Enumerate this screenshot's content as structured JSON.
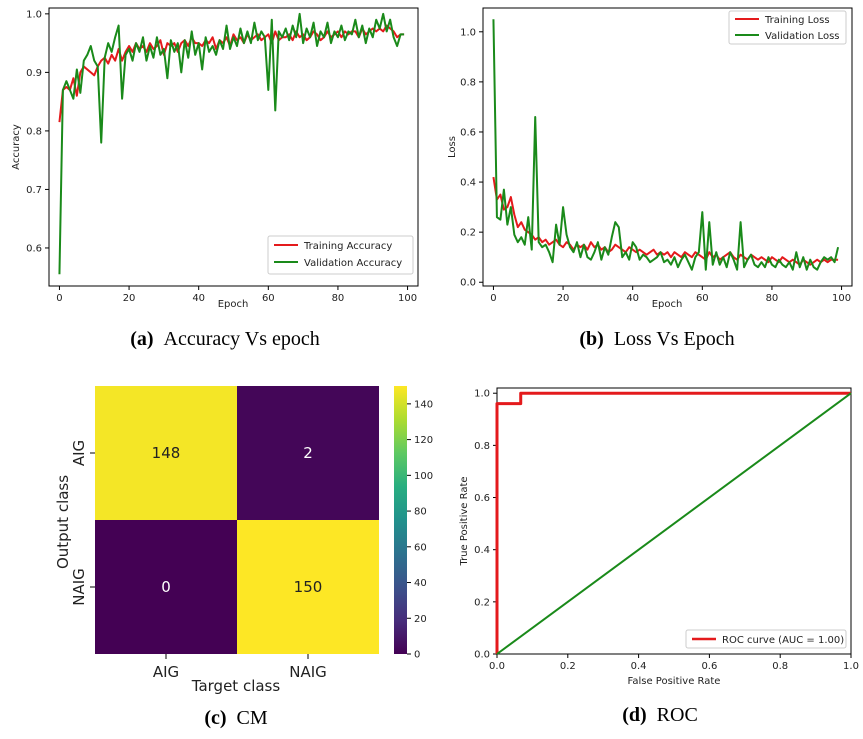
{
  "captions": [
    {
      "letter": "(a)",
      "text": "Accuracy Vs epoch"
    },
    {
      "letter": "(b)",
      "text": "Loss Vs Epoch"
    },
    {
      "letter": "(c)",
      "text": "CM"
    },
    {
      "letter": "(d)",
      "text": "ROC"
    }
  ],
  "chart_data": [
    {
      "type": "line",
      "title": "",
      "xlabel": "Epoch",
      "ylabel": "Accuracy",
      "xlim": [
        -3,
        103
      ],
      "ylim": [
        0.535,
        1.01
      ],
      "xticks": [
        0,
        20,
        40,
        60,
        80,
        100
      ],
      "yticks": [
        0.6,
        0.7,
        0.8,
        0.9,
        1.0
      ],
      "ytick_labels": [
        "0.6",
        "0.7",
        "0.8",
        "0.9",
        "1.0"
      ],
      "legend_position": "bottom-right",
      "series": [
        {
          "name": "Training Accuracy",
          "color": "#e41a1c",
          "y": [
            0.815,
            0.87,
            0.875,
            0.87,
            0.89,
            0.86,
            0.9,
            0.91,
            0.905,
            0.9,
            0.895,
            0.91,
            0.92,
            0.925,
            0.915,
            0.93,
            0.92,
            0.94,
            0.92,
            0.935,
            0.945,
            0.935,
            0.95,
            0.94,
            0.945,
            0.935,
            0.95,
            0.94,
            0.945,
            0.955,
            0.93,
            0.95,
            0.945,
            0.95,
            0.935,
            0.95,
            0.955,
            0.945,
            0.96,
            0.95,
            0.95,
            0.945,
            0.955,
            0.95,
            0.96,
            0.94,
            0.955,
            0.95,
            0.96,
            0.945,
            0.965,
            0.955,
            0.96,
            0.95,
            0.965,
            0.955,
            0.96,
            0.965,
            0.955,
            0.96,
            0.965,
            0.95,
            0.97,
            0.955,
            0.96,
            0.96,
            0.965,
            0.955,
            0.97,
            0.96,
            0.965,
            0.955,
            0.96,
            0.97,
            0.965,
            0.955,
            0.96,
            0.97,
            0.96,
            0.965,
            0.97,
            0.96,
            0.97,
            0.965,
            0.97,
            0.97,
            0.96,
            0.975,
            0.965,
            0.97,
            0.975,
            0.97,
            0.975,
            0.97,
            0.98,
            0.975,
            0.97,
            0.96,
            0.965,
            0.965
          ]
        },
        {
          "name": "Validation Accuracy",
          "color": "#1a8a1a",
          "y": [
            0.555,
            0.87,
            0.885,
            0.87,
            0.855,
            0.905,
            0.865,
            0.92,
            0.93,
            0.945,
            0.92,
            0.91,
            0.78,
            0.925,
            0.95,
            0.935,
            0.96,
            0.98,
            0.855,
            0.93,
            0.94,
            0.92,
            0.95,
            0.935,
            0.96,
            0.92,
            0.945,
            0.925,
            0.96,
            0.93,
            0.94,
            0.89,
            0.955,
            0.935,
            0.95,
            0.9,
            0.955,
            0.925,
            0.97,
            0.93,
            0.95,
            0.905,
            0.96,
            0.935,
            0.945,
            0.93,
            0.955,
            0.94,
            0.98,
            0.94,
            0.96,
            0.945,
            0.975,
            0.95,
            0.97,
            0.95,
            0.985,
            0.955,
            0.97,
            0.96,
            0.87,
            0.99,
            0.835,
            0.97,
            0.96,
            0.975,
            0.955,
            0.98,
            0.96,
            1.0,
            0.95,
            0.975,
            0.96,
            0.985,
            0.945,
            0.97,
            0.96,
            0.985,
            0.95,
            0.97,
            0.96,
            0.98,
            0.955,
            0.97,
            0.965,
            0.99,
            0.96,
            0.98,
            0.95,
            0.975,
            0.96,
            0.99,
            0.975,
            1.0,
            0.97,
            0.99,
            0.96,
            0.945,
            0.965,
            0.965
          ]
        }
      ]
    },
    {
      "type": "line",
      "title": "",
      "xlabel": "Epoch",
      "ylabel": "Loss",
      "xlim": [
        -3,
        103
      ],
      "ylim": [
        -0.015,
        1.095
      ],
      "xticks": [
        0,
        20,
        40,
        60,
        80,
        100
      ],
      "yticks": [
        0.0,
        0.2,
        0.4,
        0.6,
        0.8,
        1.0
      ],
      "ytick_labels": [
        "0.0",
        "0.2",
        "0.4",
        "0.6",
        "0.8",
        "1.0"
      ],
      "legend_position": "top-right",
      "series": [
        {
          "name": "Training Loss",
          "color": "#e41a1c",
          "y": [
            0.42,
            0.33,
            0.35,
            0.29,
            0.3,
            0.34,
            0.27,
            0.22,
            0.24,
            0.21,
            0.2,
            0.19,
            0.17,
            0.18,
            0.16,
            0.17,
            0.15,
            0.16,
            0.17,
            0.15,
            0.14,
            0.16,
            0.15,
            0.13,
            0.15,
            0.14,
            0.15,
            0.13,
            0.16,
            0.14,
            0.15,
            0.13,
            0.14,
            0.12,
            0.13,
            0.15,
            0.14,
            0.13,
            0.12,
            0.14,
            0.13,
            0.12,
            0.13,
            0.12,
            0.11,
            0.12,
            0.13,
            0.11,
            0.12,
            0.11,
            0.12,
            0.1,
            0.12,
            0.11,
            0.1,
            0.12,
            0.11,
            0.1,
            0.12,
            0.11,
            0.1,
            0.09,
            0.12,
            0.1,
            0.11,
            0.09,
            0.1,
            0.11,
            0.12,
            0.1,
            0.09,
            0.11,
            0.1,
            0.09,
            0.11,
            0.1,
            0.09,
            0.1,
            0.09,
            0.08,
            0.1,
            0.09,
            0.08,
            0.1,
            0.09,
            0.08,
            0.09,
            0.08,
            0.07,
            0.09,
            0.08,
            0.07,
            0.08,
            0.09,
            0.08,
            0.09,
            0.08,
            0.09,
            0.09,
            0.09
          ]
        },
        {
          "name": "Validation Loss",
          "color": "#1a8a1a",
          "y": [
            1.05,
            0.26,
            0.25,
            0.37,
            0.23,
            0.3,
            0.19,
            0.16,
            0.18,
            0.15,
            0.26,
            0.13,
            0.66,
            0.16,
            0.14,
            0.15,
            0.12,
            0.08,
            0.23,
            0.15,
            0.3,
            0.19,
            0.14,
            0.12,
            0.16,
            0.1,
            0.15,
            0.1,
            0.09,
            0.12,
            0.16,
            0.09,
            0.14,
            0.11,
            0.18,
            0.24,
            0.22,
            0.1,
            0.12,
            0.09,
            0.16,
            0.14,
            0.09,
            0.11,
            0.1,
            0.08,
            0.09,
            0.1,
            0.12,
            0.08,
            0.09,
            0.07,
            0.1,
            0.06,
            0.09,
            0.11,
            0.08,
            0.05,
            0.1,
            0.12,
            0.28,
            0.05,
            0.24,
            0.07,
            0.12,
            0.07,
            0.1,
            0.06,
            0.12,
            0.09,
            0.05,
            0.24,
            0.06,
            0.09,
            0.11,
            0.07,
            0.06,
            0.08,
            0.06,
            0.1,
            0.07,
            0.06,
            0.09,
            0.07,
            0.06,
            0.08,
            0.05,
            0.12,
            0.06,
            0.1,
            0.05,
            0.09,
            0.06,
            0.05,
            0.08,
            0.1,
            0.09,
            0.1,
            0.08,
            0.14
          ]
        }
      ]
    },
    {
      "type": "heatmap",
      "title": "",
      "xlabel": "Target class",
      "ylabel": "Output class",
      "x_categories": [
        "AIG",
        "NAIG"
      ],
      "y_categories": [
        "AIG",
        "NAIG"
      ],
      "values": [
        [
          148,
          2
        ],
        [
          0,
          150
        ]
      ],
      "colorbar": {
        "min": 0,
        "max": 150,
        "ticks": [
          0,
          20,
          40,
          60,
          80,
          100,
          120,
          140
        ]
      },
      "colormap": "viridis"
    },
    {
      "type": "line",
      "title": "",
      "xlabel": "False Positive Rate",
      "ylabel": "True Positive Rate",
      "xlim": [
        0,
        1
      ],
      "ylim": [
        0,
        1.02
      ],
      "xticks": [
        0,
        0.2,
        0.4,
        0.6,
        0.8,
        1.0
      ],
      "yticks": [
        0,
        0.2,
        0.4,
        0.6,
        0.8,
        1.0
      ],
      "tick_labels": [
        "0.0",
        "0.2",
        "0.4",
        "0.6",
        "0.8",
        "1.0"
      ],
      "legend_position": "bottom-right",
      "series": [
        {
          "name": "ROC curve (AUC = 1.00)",
          "color": "#e41a1c",
          "x": [
            0,
            0,
            0.067,
            0.067,
            1.0
          ],
          "y": [
            0,
            0.96,
            0.96,
            1.0,
            1.0
          ]
        },
        {
          "color": "#1a8a1a",
          "x": [
            0,
            1
          ],
          "y": [
            0,
            1
          ]
        }
      ]
    }
  ]
}
